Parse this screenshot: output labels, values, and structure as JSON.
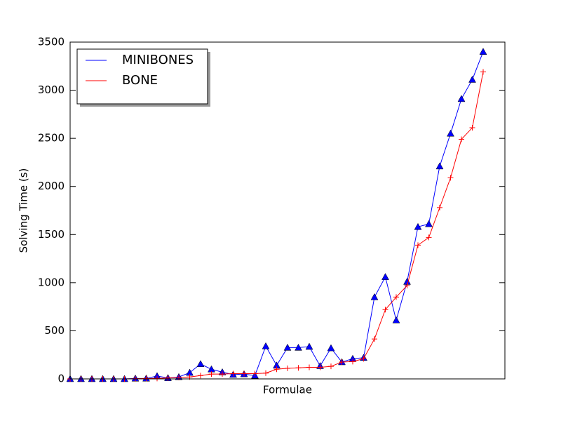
{
  "chart_data": {
    "type": "line",
    "xlabel": "Formulae",
    "ylabel": "Solving Time (s)",
    "x": [
      0,
      1,
      2,
      3,
      4,
      5,
      6,
      7,
      8,
      9,
      10,
      11,
      12,
      13,
      14,
      15,
      16,
      17,
      18,
      19,
      20,
      21,
      22,
      23,
      24,
      25,
      26,
      27,
      28,
      29,
      30,
      31,
      32,
      33,
      34,
      35,
      36,
      37,
      38
    ],
    "xlim": [
      0,
      40
    ],
    "ylim": [
      0,
      3500
    ],
    "yticks": [
      0,
      500,
      1000,
      1500,
      2000,
      2500,
      3000,
      3500
    ],
    "legend": "upper left",
    "series": [
      {
        "name": "MINIBONES",
        "color": "#0000ff",
        "marker": "triangle",
        "values": [
          0,
          0,
          0,
          0,
          0,
          0,
          5,
          5,
          30,
          10,
          20,
          65,
          155,
          100,
          70,
          45,
          50,
          35,
          340,
          140,
          325,
          325,
          335,
          135,
          320,
          175,
          210,
          220,
          850,
          1060,
          610,
          1010,
          1580,
          1610,
          2210,
          2550,
          2910,
          3110,
          3400
        ]
      },
      {
        "name": "BONE",
        "color": "#ff0000",
        "marker": "plus",
        "values": [
          0,
          0,
          0,
          0,
          0,
          0,
          2,
          5,
          5,
          10,
          15,
          20,
          35,
          50,
          50,
          55,
          55,
          55,
          60,
          100,
          110,
          115,
          120,
          120,
          130,
          175,
          180,
          210,
          415,
          720,
          850,
          970,
          1390,
          1470,
          1780,
          2090,
          2490,
          2610,
          3190
        ]
      }
    ]
  }
}
